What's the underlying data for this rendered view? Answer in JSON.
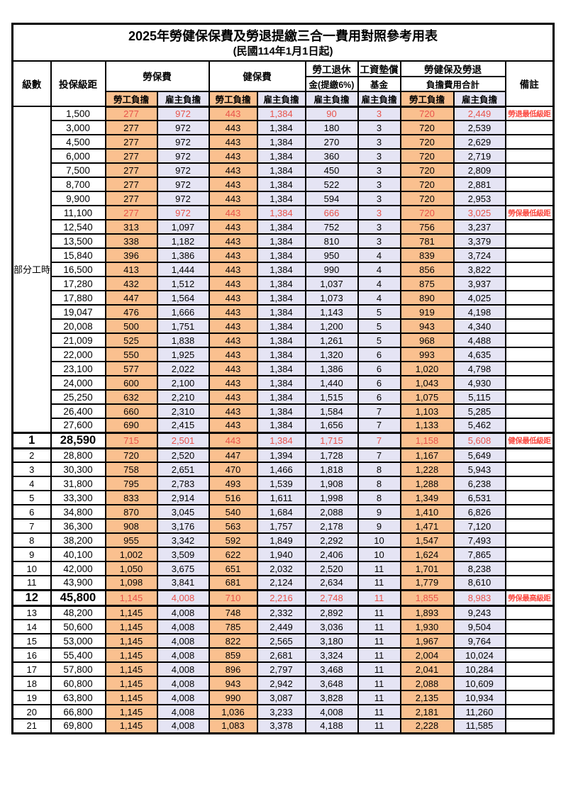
{
  "title": "2025年勞健保保費及勞退提繳三合一費用對照參考用表",
  "subtitle": "(民國114年1月1日起)",
  "colors": {
    "employee_column_bg": "#FAC08F",
    "employer_column_bg": "#E5E4F4",
    "red_value_text": "#E8534B",
    "remark_red_text": "#FB4B42",
    "border_black": "#000000"
  },
  "header": {
    "level": "級數",
    "bracket": "投保級距",
    "labor_fee": "勞保費",
    "health_fee": "健保費",
    "pension_line1": "勞工退休",
    "pension_line2": "金(提繳6%)",
    "wage_fund_line1": "工資墊償",
    "wage_fund_line2": "基金",
    "total_line1": "勞健保及勞退",
    "total_line2": "負擔費用合計",
    "remark": "備註",
    "employee_burden": "勞工負擔",
    "employer_burden": "雇主負擔"
  },
  "part_time_label": "部分工時",
  "table": {
    "part_time_row_count": 23,
    "value_column_keys": [
      "labor-fee-employee",
      "labor-fee-employer",
      "health-fee-employee",
      "health-fee-employer",
      "pension-employer",
      "wage-fund-employer",
      "total-employee",
      "total-employer"
    ],
    "rows": [
      {
        "level": "",
        "bracket": "1,500",
        "values": [
          "277",
          "972",
          "443",
          "1,384",
          "90",
          "3",
          "720",
          "2,449"
        ],
        "remark": "勞退最低級距",
        "red": true
      },
      {
        "level": "",
        "bracket": "3,000",
        "values": [
          "277",
          "972",
          "443",
          "1,384",
          "180",
          "3",
          "720",
          "2,539"
        ],
        "remark": ""
      },
      {
        "level": "",
        "bracket": "4,500",
        "values": [
          "277",
          "972",
          "443",
          "1,384",
          "270",
          "3",
          "720",
          "2,629"
        ],
        "remark": ""
      },
      {
        "level": "",
        "bracket": "6,000",
        "values": [
          "277",
          "972",
          "443",
          "1,384",
          "360",
          "3",
          "720",
          "2,719"
        ],
        "remark": ""
      },
      {
        "level": "",
        "bracket": "7,500",
        "values": [
          "277",
          "972",
          "443",
          "1,384",
          "450",
          "3",
          "720",
          "2,809"
        ],
        "remark": ""
      },
      {
        "level": "",
        "bracket": "8,700",
        "values": [
          "277",
          "972",
          "443",
          "1,384",
          "522",
          "3",
          "720",
          "2,881"
        ],
        "remark": ""
      },
      {
        "level": "",
        "bracket": "9,900",
        "values": [
          "277",
          "972",
          "443",
          "1,384",
          "594",
          "3",
          "720",
          "2,953"
        ],
        "remark": ""
      },
      {
        "level": "",
        "bracket": "11,100",
        "values": [
          "277",
          "972",
          "443",
          "1,384",
          "666",
          "3",
          "720",
          "3,025"
        ],
        "remark": "勞保最低級距",
        "red": true
      },
      {
        "level": "",
        "bracket": "12,540",
        "values": [
          "313",
          "1,097",
          "443",
          "1,384",
          "752",
          "3",
          "756",
          "3,237"
        ],
        "remark": ""
      },
      {
        "level": "",
        "bracket": "13,500",
        "values": [
          "338",
          "1,182",
          "443",
          "1,384",
          "810",
          "3",
          "781",
          "3,379"
        ],
        "remark": ""
      },
      {
        "level": "",
        "bracket": "15,840",
        "values": [
          "396",
          "1,386",
          "443",
          "1,384",
          "950",
          "4",
          "839",
          "3,724"
        ],
        "remark": ""
      },
      {
        "level": "",
        "bracket": "16,500",
        "values": [
          "413",
          "1,444",
          "443",
          "1,384",
          "990",
          "4",
          "856",
          "3,822"
        ],
        "remark": ""
      },
      {
        "level": "",
        "bracket": "17,280",
        "values": [
          "432",
          "1,512",
          "443",
          "1,384",
          "1,037",
          "4",
          "875",
          "3,937"
        ],
        "remark": ""
      },
      {
        "level": "",
        "bracket": "17,880",
        "values": [
          "447",
          "1,564",
          "443",
          "1,384",
          "1,073",
          "4",
          "890",
          "4,025"
        ],
        "remark": ""
      },
      {
        "level": "",
        "bracket": "19,047",
        "values": [
          "476",
          "1,666",
          "443",
          "1,384",
          "1,143",
          "5",
          "919",
          "4,198"
        ],
        "remark": ""
      },
      {
        "level": "",
        "bracket": "20,008",
        "values": [
          "500",
          "1,751",
          "443",
          "1,384",
          "1,200",
          "5",
          "943",
          "4,340"
        ],
        "remark": ""
      },
      {
        "level": "",
        "bracket": "21,009",
        "values": [
          "525",
          "1,838",
          "443",
          "1,384",
          "1,261",
          "5",
          "968",
          "4,488"
        ],
        "remark": ""
      },
      {
        "level": "",
        "bracket": "22,000",
        "values": [
          "550",
          "1,925",
          "443",
          "1,384",
          "1,320",
          "6",
          "993",
          "4,635"
        ],
        "remark": ""
      },
      {
        "level": "",
        "bracket": "23,100",
        "values": [
          "577",
          "2,022",
          "443",
          "1,384",
          "1,386",
          "6",
          "1,020",
          "4,798"
        ],
        "remark": ""
      },
      {
        "level": "",
        "bracket": "24,000",
        "values": [
          "600",
          "2,100",
          "443",
          "1,384",
          "1,440",
          "6",
          "1,043",
          "4,930"
        ],
        "remark": ""
      },
      {
        "level": "",
        "bracket": "25,250",
        "values": [
          "632",
          "2,210",
          "443",
          "1,384",
          "1,515",
          "6",
          "1,075",
          "5,115"
        ],
        "remark": ""
      },
      {
        "level": "",
        "bracket": "26,400",
        "values": [
          "660",
          "2,310",
          "443",
          "1,384",
          "1,584",
          "7",
          "1,103",
          "5,285"
        ],
        "remark": ""
      },
      {
        "level": "",
        "bracket": "27,600",
        "values": [
          "690",
          "2,415",
          "443",
          "1,384",
          "1,656",
          "7",
          "1,133",
          "5,462"
        ],
        "remark": ""
      },
      {
        "level": "1",
        "bracket": "28,590",
        "values": [
          "715",
          "2,501",
          "443",
          "1,384",
          "1,715",
          "7",
          "1,158",
          "5,608"
        ],
        "remark": "健保最低級距",
        "red": true,
        "emph": true,
        "thick": true
      },
      {
        "level": "2",
        "bracket": "28,800",
        "values": [
          "720",
          "2,520",
          "447",
          "1,394",
          "1,728",
          "7",
          "1,167",
          "5,649"
        ],
        "remark": ""
      },
      {
        "level": "3",
        "bracket": "30,300",
        "values": [
          "758",
          "2,651",
          "470",
          "1,466",
          "1,818",
          "8",
          "1,228",
          "5,943"
        ],
        "remark": ""
      },
      {
        "level": "4",
        "bracket": "31,800",
        "values": [
          "795",
          "2,783",
          "493",
          "1,539",
          "1,908",
          "8",
          "1,288",
          "6,238"
        ],
        "remark": ""
      },
      {
        "level": "5",
        "bracket": "33,300",
        "values": [
          "833",
          "2,914",
          "516",
          "1,611",
          "1,998",
          "8",
          "1,349",
          "6,531"
        ],
        "remark": ""
      },
      {
        "level": "6",
        "bracket": "34,800",
        "values": [
          "870",
          "3,045",
          "540",
          "1,684",
          "2,088",
          "9",
          "1,410",
          "6,826"
        ],
        "remark": ""
      },
      {
        "level": "7",
        "bracket": "36,300",
        "values": [
          "908",
          "3,176",
          "563",
          "1,757",
          "2,178",
          "9",
          "1,471",
          "7,120"
        ],
        "remark": ""
      },
      {
        "level": "8",
        "bracket": "38,200",
        "values": [
          "955",
          "3,342",
          "592",
          "1,849",
          "2,292",
          "10",
          "1,547",
          "7,493"
        ],
        "remark": ""
      },
      {
        "level": "9",
        "bracket": "40,100",
        "values": [
          "1,002",
          "3,509",
          "622",
          "1,940",
          "2,406",
          "10",
          "1,624",
          "7,865"
        ],
        "remark": ""
      },
      {
        "level": "10",
        "bracket": "42,000",
        "values": [
          "1,050",
          "3,675",
          "651",
          "2,032",
          "2,520",
          "11",
          "1,701",
          "8,238"
        ],
        "remark": ""
      },
      {
        "level": "11",
        "bracket": "43,900",
        "values": [
          "1,098",
          "3,841",
          "681",
          "2,124",
          "2,634",
          "11",
          "1,779",
          "8,610"
        ],
        "remark": ""
      },
      {
        "level": "12",
        "bracket": "45,800",
        "values": [
          "1,145",
          "4,008",
          "710",
          "2,216",
          "2,748",
          "11",
          "1,855",
          "8,983"
        ],
        "remark": "勞保最高級距",
        "red": true,
        "emph": true,
        "thick": true
      },
      {
        "level": "13",
        "bracket": "48,200",
        "values": [
          "1,145",
          "4,008",
          "748",
          "2,332",
          "2,892",
          "11",
          "1,893",
          "9,243"
        ],
        "remark": ""
      },
      {
        "level": "14",
        "bracket": "50,600",
        "values": [
          "1,145",
          "4,008",
          "785",
          "2,449",
          "3,036",
          "11",
          "1,930",
          "9,504"
        ],
        "remark": ""
      },
      {
        "level": "15",
        "bracket": "53,000",
        "values": [
          "1,145",
          "4,008",
          "822",
          "2,565",
          "3,180",
          "11",
          "1,967",
          "9,764"
        ],
        "remark": ""
      },
      {
        "level": "16",
        "bracket": "55,400",
        "values": [
          "1,145",
          "4,008",
          "859",
          "2,681",
          "3,324",
          "11",
          "2,004",
          "10,024"
        ],
        "remark": ""
      },
      {
        "level": "17",
        "bracket": "57,800",
        "values": [
          "1,145",
          "4,008",
          "896",
          "2,797",
          "3,468",
          "11",
          "2,041",
          "10,284"
        ],
        "remark": ""
      },
      {
        "level": "18",
        "bracket": "60,800",
        "values": [
          "1,145",
          "4,008",
          "943",
          "2,942",
          "3,648",
          "11",
          "2,088",
          "10,609"
        ],
        "remark": ""
      },
      {
        "level": "19",
        "bracket": "63,800",
        "values": [
          "1,145",
          "4,008",
          "990",
          "3,087",
          "3,828",
          "11",
          "2,135",
          "10,934"
        ],
        "remark": ""
      },
      {
        "level": "20",
        "bracket": "66,800",
        "values": [
          "1,145",
          "4,008",
          "1,036",
          "3,233",
          "4,008",
          "11",
          "2,181",
          "11,260"
        ],
        "remark": ""
      },
      {
        "level": "21",
        "bracket": "69,800",
        "values": [
          "1,145",
          "4,008",
          "1,083",
          "3,378",
          "4,188",
          "11",
          "2,228",
          "11,585"
        ],
        "remark": ""
      }
    ]
  }
}
